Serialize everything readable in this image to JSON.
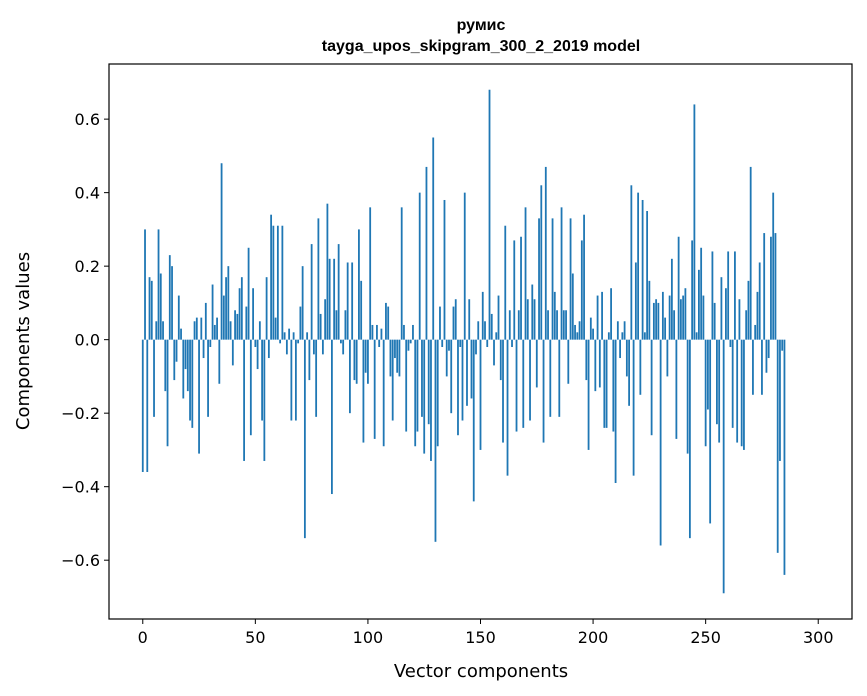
{
  "chart_data": {
    "type": "bar",
    "title": "румис\ntayga_upos_skipgram_300_2_2019 model",
    "title_lines": [
      "румис",
      "tayga_upos_skipgram_300_2_2019 model"
    ],
    "xlabel": "Vector components",
    "ylabel": "Components values",
    "xlim": [
      -15,
      315
    ],
    "ylim": [
      -0.76,
      0.75
    ],
    "xticks": [
      0,
      50,
      100,
      150,
      200,
      250,
      300
    ],
    "yticks": [
      -0.6,
      -0.4,
      -0.2,
      0.0,
      0.2,
      0.4,
      0.6
    ],
    "ytick_labels": [
      "−0.6",
      "−0.4",
      "−0.2",
      "0.0",
      "0.2",
      "0.4",
      "0.6"
    ],
    "bar_color": "#1f77b4",
    "grid": false,
    "values": [
      -0.36,
      0.3,
      -0.36,
      0.17,
      0.16,
      -0.21,
      0.05,
      0.3,
      0.18,
      0.05,
      -0.14,
      -0.29,
      0.23,
      0.2,
      -0.11,
      -0.06,
      0.12,
      0.03,
      -0.16,
      -0.08,
      -0.14,
      -0.22,
      -0.24,
      0.05,
      0.06,
      -0.31,
      0.06,
      -0.05,
      0.1,
      -0.21,
      -0.02,
      0.15,
      0.04,
      0.06,
      -0.12,
      0.48,
      0.12,
      0.17,
      0.2,
      0.05,
      -0.07,
      0.08,
      0.07,
      0.14,
      0.17,
      -0.33,
      0.09,
      0.25,
      -0.26,
      0.14,
      -0.02,
      -0.08,
      0.05,
      -0.22,
      -0.33,
      0.17,
      -0.05,
      0.34,
      0.31,
      0.06,
      0.31,
      -0.01,
      0.31,
      0.02,
      -0.04,
      0.03,
      -0.22,
      0.02,
      -0.22,
      -0.01,
      0.09,
      0.2,
      -0.54,
      0.02,
      -0.11,
      0.26,
      -0.04,
      -0.21,
      0.33,
      0.07,
      -0.04,
      0.11,
      0.37,
      0.22,
      -0.42,
      0.22,
      0.08,
      0.26,
      -0.01,
      -0.04,
      0.08,
      0.21,
      -0.2,
      0.21,
      -0.11,
      -0.12,
      0.3,
      0.16,
      -0.28,
      -0.09,
      -0.12,
      0.36,
      0.04,
      -0.27,
      0.04,
      -0.02,
      0.03,
      -0.29,
      0.1,
      0.09,
      -0.1,
      -0.22,
      -0.05,
      -0.09,
      -0.1,
      0.36,
      0.04,
      -0.25,
      -0.03,
      -0.01,
      0.04,
      -0.29,
      -0.25,
      0.4,
      -0.21,
      -0.31,
      0.47,
      -0.23,
      -0.33,
      0.55,
      -0.55,
      -0.29,
      0.09,
      -0.02,
      0.38,
      -0.1,
      -0.03,
      -0.2,
      0.09,
      0.11,
      -0.26,
      -0.02,
      -0.22,
      0.4,
      -0.18,
      0.11,
      -0.16,
      -0.44,
      -0.04,
      0.05,
      -0.3,
      0.13,
      0.05,
      -0.02,
      0.68,
      0.07,
      -0.07,
      0.02,
      0.12,
      -0.11,
      -0.28,
      0.31,
      -0.37,
      0.08,
      -0.02,
      0.27,
      -0.25,
      0.08,
      0.28,
      -0.24,
      0.36,
      0.11,
      -0.22,
      0.15,
      0.11,
      -0.13,
      0.33,
      0.42,
      -0.28,
      0.47,
      0.08,
      -0.21,
      0.33,
      0.13,
      0.08,
      -0.21,
      0.36,
      0.08,
      0.08,
      -0.12,
      0.33,
      0.18,
      0.04,
      0.02,
      0.05,
      0.27,
      0.34,
      -0.11,
      -0.3,
      0.06,
      0.03,
      -0.14,
      0.12,
      -0.13,
      0.13,
      -0.24,
      -0.24,
      0.02,
      0.14,
      -0.25,
      -0.39,
      0.05,
      -0.05,
      0.02,
      0.05,
      -0.1,
      -0.18,
      0.42,
      -0.37,
      0.21,
      0.4,
      -0.15,
      0.38,
      0.02,
      0.35,
      0.16,
      -0.26,
      0.1,
      0.11,
      0.1,
      -0.56,
      0.13,
      0.06,
      -0.1,
      0.12,
      0.22,
      0.08,
      -0.27,
      0.28,
      0.11,
      0.12,
      0.14,
      -0.31,
      -0.54,
      0.27,
      0.64,
      0.02,
      0.19,
      0.25,
      0.12,
      -0.29,
      -0.19,
      -0.5,
      0.24,
      0.1,
      -0.23,
      -0.28,
      0.17,
      -0.69,
      0.14,
      0.24,
      -0.02,
      -0.24,
      0.24,
      -0.28,
      0.11,
      -0.29,
      -0.3,
      0.08,
      0.16,
      0.47,
      -0.15,
      0.04,
      0.13,
      0.21,
      -0.15,
      0.29,
      -0.09,
      -0.05,
      0.28,
      0.4,
      0.29,
      -0.58,
      -0.33,
      -0.03,
      -0.64
    ]
  }
}
